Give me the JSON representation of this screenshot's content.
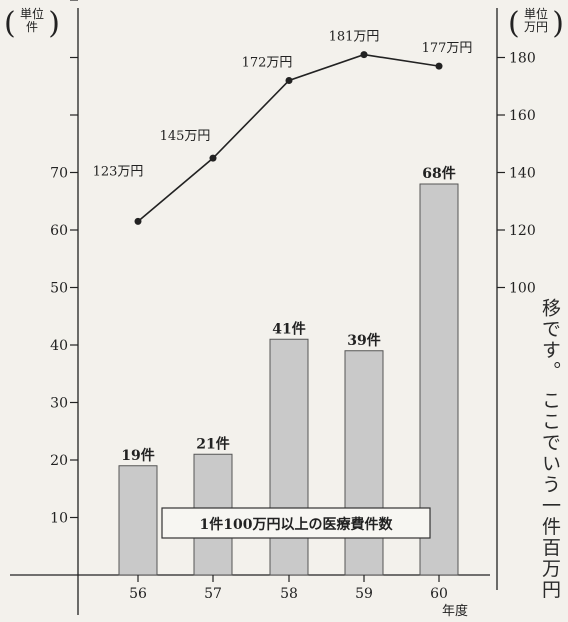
{
  "chart_data": {
    "type": "bar",
    "categories": [
      "56",
      "57",
      "58",
      "59",
      "60"
    ],
    "bar_series": {
      "values": [
        19,
        21,
        41,
        39,
        68
      ],
      "data_labels": [
        "19件",
        "21件",
        "41件",
        "39件",
        "68件"
      ],
      "color": "#c9c9c9"
    },
    "line_series": {
      "values": [
        123,
        145,
        172,
        181,
        177
      ],
      "data_labels": [
        "123万円",
        "145万円",
        "172万円",
        "181万円",
        "177万円"
      ],
      "color": "#222222"
    },
    "left_axis": {
      "unit_lines": [
        "単位",
        "件"
      ],
      "ticks": [
        10,
        20,
        30,
        40,
        50,
        60,
        70
      ],
      "ylim": [
        0,
        80
      ]
    },
    "right_axis": {
      "unit_lines": [
        "単位",
        "万円"
      ],
      "ticks": [
        100,
        120,
        140,
        160,
        180
      ],
      "ylim": [
        0,
        200
      ]
    },
    "xlabel": "年度",
    "annotation": "1件100万円以上の医療費件数",
    "grid": false
  },
  "side_text": "移です。 ここでいう一件百万円"
}
